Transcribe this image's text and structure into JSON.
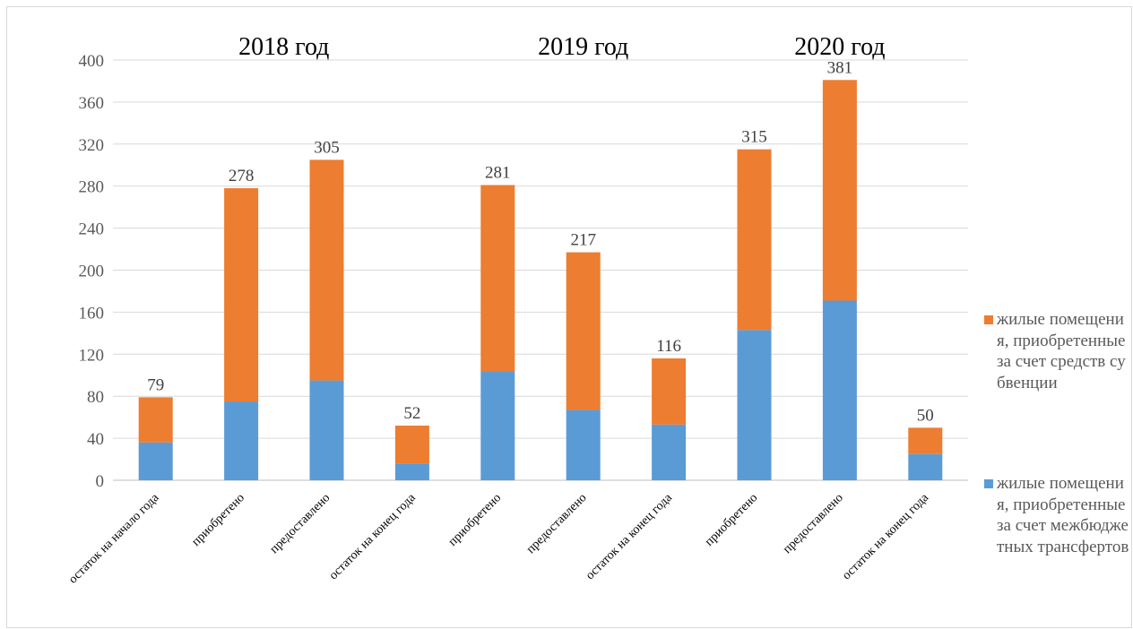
{
  "chart_data": {
    "type": "bar",
    "stacked": true,
    "groups": [
      "2018 год",
      "2019 год",
      "2020 год"
    ],
    "categories": [
      "остаток на начало года",
      "приобретено",
      "предоставлено",
      "остаток на конец года",
      "приобретено",
      "предоставлено",
      "остаток на конец года",
      "приобретено",
      "предоставлено",
      "остаток на конец года"
    ],
    "series": [
      {
        "name": "жилые помещения, приобретенные за счет межбюджетных трансфертов",
        "color": "#5b9bd5",
        "values": [
          36,
          75,
          95,
          16,
          104,
          67,
          53,
          143,
          171,
          25
        ]
      },
      {
        "name": "жилые помещения, приобретенные за счет средств субвенции",
        "color": "#ed7d31",
        "values": [
          43,
          203,
          210,
          36,
          177,
          150,
          63,
          172,
          210,
          25
        ]
      }
    ],
    "totals": [
      "79",
      "278",
      "305",
      "52",
      "281",
      "217",
      "116",
      "315",
      "381",
      "50"
    ],
    "yticks": [
      "0",
      "40",
      "80",
      "120",
      "160",
      "200",
      "240",
      "280",
      "320",
      "360",
      "400"
    ],
    "ylim": [
      0,
      400
    ],
    "grid": true,
    "legend_position": "right"
  }
}
